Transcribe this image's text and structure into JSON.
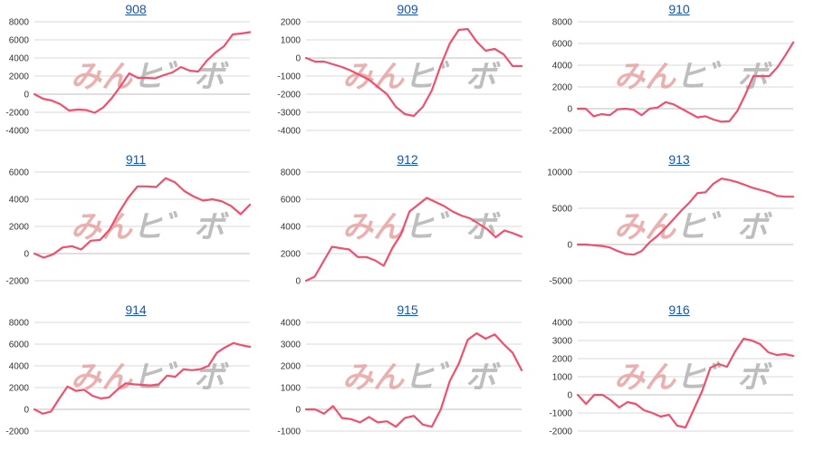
{
  "colors": {
    "line": "#f0506e",
    "grid": "#d9d9d9",
    "zero_line": "#bfbfbf",
    "title": "#1a55a8",
    "watermark_left": "#e8a3a3",
    "watermark_right": "#b3b3b3"
  },
  "watermark": {
    "left": "みん",
    "right": "ヒ゛ボ",
    "icon": "logo-watermark"
  },
  "chart_data": [
    {
      "type": "line",
      "title": "908",
      "yticks": [
        -4000,
        -2000,
        0,
        2000,
        4000,
        6000,
        8000
      ],
      "ylim": [
        -4000,
        8000
      ],
      "tick_labels": [
        "-4000",
        "-2000",
        "0",
        "2000",
        "4000",
        "6000",
        "8000"
      ],
      "grid": true,
      "series": [
        {
          "values": [
            0,
            -500,
            -700,
            -1100,
            -1800,
            -1700,
            -1750,
            -2050,
            -1450,
            -400,
            900,
            2300,
            1800,
            1800,
            1750,
            2100,
            2400,
            3000,
            2600,
            2500,
            3700,
            4600,
            5300,
            6600,
            6700,
            6850
          ]
        }
      ]
    },
    {
      "type": "line",
      "title": "909",
      "yticks": [
        -4000,
        -3000,
        -2000,
        -1000,
        0,
        1000,
        2000
      ],
      "ylim": [
        -4000,
        2000
      ],
      "tick_labels": [
        "-4000",
        "-3000",
        "-2000",
        "-1000",
        "0",
        "1000",
        "2000"
      ],
      "grid": true,
      "series": [
        {
          "values": [
            0,
            -200,
            -200,
            -350,
            -500,
            -700,
            -950,
            -1200,
            -1600,
            -2000,
            -2700,
            -3100,
            -3200,
            -2700,
            -1800,
            -400,
            800,
            1550,
            1600,
            900,
            400,
            500,
            200,
            -450,
            -450
          ]
        }
      ]
    },
    {
      "type": "line",
      "title": "910",
      "yticks": [
        -2000,
        0,
        2000,
        4000,
        6000,
        8000
      ],
      "ylim": [
        -2000,
        8000
      ],
      "tick_labels": [
        "-2000",
        "0",
        "2000",
        "4000",
        "6000",
        "8000"
      ],
      "grid": true,
      "series": [
        {
          "values": [
            0,
            0,
            -700,
            -500,
            -600,
            -50,
            0,
            -100,
            -600,
            0,
            100,
            600,
            400,
            0,
            -400,
            -800,
            -700,
            -1000,
            -1200,
            -1150,
            -200,
            1300,
            3000,
            3000,
            3000,
            3800,
            4900,
            6100
          ]
        }
      ]
    },
    {
      "type": "line",
      "title": "911",
      "yticks": [
        -2000,
        0,
        2000,
        4000,
        6000
      ],
      "ylim": [
        -2000,
        6000
      ],
      "tick_labels": [
        "-2000",
        "0",
        "2000",
        "4000",
        "6000"
      ],
      "grid": true,
      "series": [
        {
          "values": [
            0,
            -300,
            -50,
            450,
            550,
            300,
            950,
            1000,
            1750,
            3000,
            4100,
            4950,
            4950,
            4900,
            5550,
            5250,
            4600,
            4200,
            3900,
            4000,
            3850,
            3500,
            2900,
            3600
          ]
        }
      ]
    },
    {
      "type": "line",
      "title": "912",
      "yticks": [
        0,
        2000,
        4000,
        6000,
        8000
      ],
      "ylim": [
        0,
        8000
      ],
      "tick_labels": [
        "0",
        "2000",
        "4000",
        "6000",
        "8000"
      ],
      "grid": true,
      "series": [
        {
          "values": [
            0,
            300,
            1400,
            2500,
            2400,
            2300,
            1750,
            1750,
            1500,
            1100,
            2400,
            3400,
            5100,
            5600,
            6100,
            5800,
            5500,
            5100,
            4800,
            4600,
            4200,
            3800,
            3200,
            3700,
            3500,
            3250
          ]
        }
      ]
    },
    {
      "type": "line",
      "title": "913",
      "yticks": [
        -5000,
        0,
        5000,
        10000
      ],
      "ylim": [
        -5000,
        10000
      ],
      "tick_labels": [
        "-5000",
        "0",
        "5000",
        "10000"
      ],
      "grid": true,
      "series": [
        {
          "values": [
            0,
            0,
            -100,
            -200,
            -400,
            -900,
            -1300,
            -1400,
            -900,
            300,
            1200,
            2300,
            3500,
            4700,
            5800,
            7100,
            7200,
            8400,
            9100,
            8900,
            8600,
            8200,
            7800,
            7500,
            7200,
            6700,
            6600,
            6600
          ]
        }
      ]
    },
    {
      "type": "line",
      "title": "914",
      "yticks": [
        -2000,
        0,
        2000,
        4000,
        6000,
        8000
      ],
      "ylim": [
        -2000,
        8000
      ],
      "tick_labels": [
        "-2000",
        "0",
        "2000",
        "4000",
        "6000",
        "8000"
      ],
      "grid": true,
      "series": [
        {
          "values": [
            0,
            -400,
            -200,
            1000,
            2100,
            1700,
            1800,
            1250,
            1000,
            1100,
            1800,
            2400,
            2300,
            2250,
            2200,
            2300,
            3100,
            3000,
            3700,
            3600,
            3700,
            4000,
            5200,
            5700,
            6100,
            5900,
            5750
          ]
        }
      ]
    },
    {
      "type": "line",
      "title": "915",
      "yticks": [
        -1000,
        0,
        1000,
        2000,
        3000,
        4000
      ],
      "ylim": [
        -1000,
        4000
      ],
      "tick_labels": [
        "-1000",
        "0",
        "1000",
        "2000",
        "3000",
        "4000"
      ],
      "grid": true,
      "series": [
        {
          "values": [
            0,
            0,
            -200,
            150,
            -400,
            -450,
            -600,
            -350,
            -600,
            -550,
            -800,
            -400,
            -300,
            -700,
            -800,
            0,
            1300,
            2100,
            3200,
            3500,
            3250,
            3450,
            3000,
            2600,
            1800
          ]
        }
      ]
    },
    {
      "type": "line",
      "title": "916",
      "yticks": [
        -2000,
        -1000,
        0,
        1000,
        2000,
        3000,
        4000
      ],
      "ylim": [
        -2000,
        4000
      ],
      "tick_labels": [
        "-2000",
        "-1000",
        "0",
        "1000",
        "2000",
        "3000",
        "4000"
      ],
      "grid": true,
      "series": [
        {
          "values": [
            0,
            -500,
            0,
            0,
            -300,
            -700,
            -400,
            -500,
            -850,
            -1000,
            -1200,
            -1100,
            -1700,
            -1800,
            -800,
            200,
            1500,
            1700,
            1550,
            2400,
            3100,
            3000,
            2800,
            2350,
            2200,
            2250,
            2150
          ]
        }
      ]
    }
  ]
}
